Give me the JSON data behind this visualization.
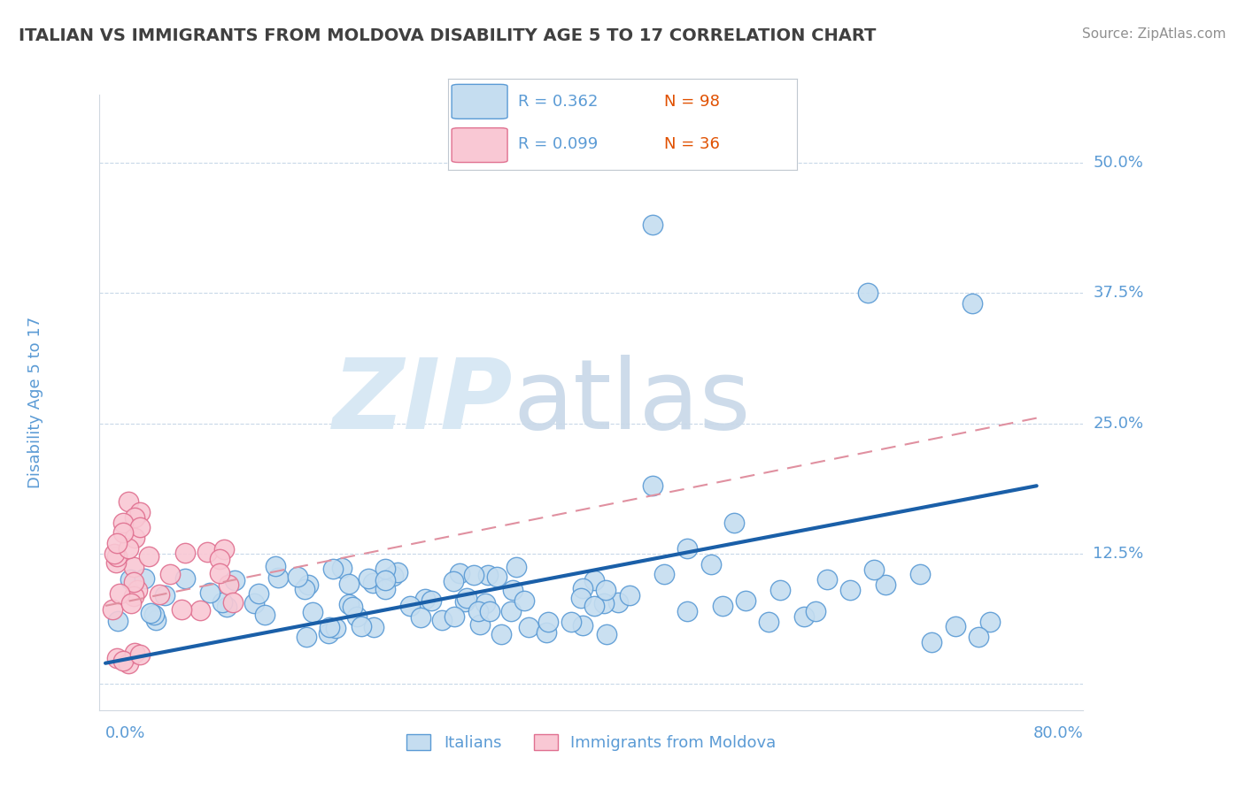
{
  "title": "ITALIAN VS IMMIGRANTS FROM MOLDOVA DISABILITY AGE 5 TO 17 CORRELATION CHART",
  "source": "Source: ZipAtlas.com",
  "ylabel": "Disability Age 5 to 17",
  "ytick_vals": [
    0.0,
    0.125,
    0.25,
    0.375,
    0.5
  ],
  "ytick_labels": [
    "",
    "12.5%",
    "25.0%",
    "37.5%",
    "50.0%"
  ],
  "xlim": [
    0.0,
    0.8
  ],
  "ylim": [
    0.0,
    0.55
  ],
  "blue_face": "#c5ddf0",
  "blue_edge": "#5b9bd5",
  "pink_face": "#f9c8d4",
  "pink_edge": "#e07090",
  "blue_line": "#1a5fa8",
  "pink_line": "#e090a0",
  "grid_color": "#c8d8e8",
  "axis_color": "#5b9bd5",
  "title_color": "#404040",
  "source_color": "#909090",
  "blue_line_x0": 0.0,
  "blue_line_y0": 0.02,
  "blue_line_x1": 0.8,
  "blue_line_y1": 0.19,
  "pink_line_x0": 0.0,
  "pink_line_y0": 0.075,
  "pink_line_x1": 0.8,
  "pink_line_y1": 0.255,
  "legend_r1": "R = 0.362",
  "legend_n1": "N = 98",
  "legend_r2": "R = 0.099",
  "legend_n2": "N = 36",
  "watermark_zip": "ZIP",
  "watermark_atlas": "atlas"
}
